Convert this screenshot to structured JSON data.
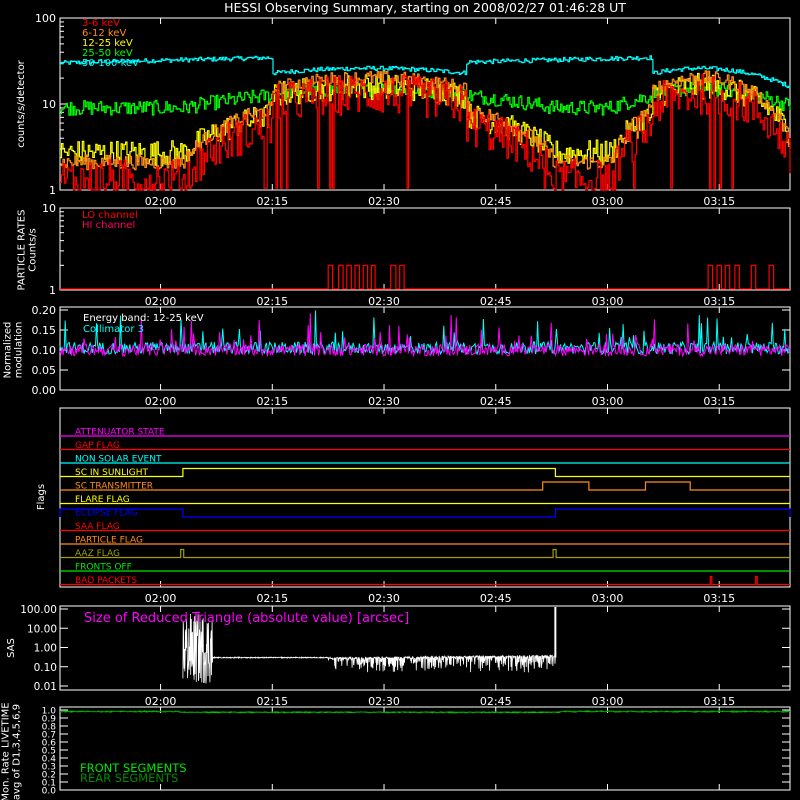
{
  "title": "HESSI Observing Summary, starting on 2008/02/27 01:46:28 UT",
  "time_ticks": [
    "02:00",
    "02:15",
    "02:30",
    "02:45",
    "03:00",
    "03:15"
  ],
  "colors": {
    "background": "#000000",
    "axes": "#ffffff",
    "red": "#ff0000",
    "orange": "#ff8c1a",
    "yellow": "#ffff00",
    "green": "#00ff00",
    "cyan": "#00ffff",
    "magenta": "#ff00ff",
    "crimson": "#ff0060",
    "blue": "#0000ff",
    "olive": "#a0a000",
    "lime": "#00e600",
    "darkgreen": "#008c00"
  },
  "chart_data": [
    {
      "type": "line",
      "panel": "count-rates",
      "ylabel": "counts/s/detector",
      "scale": "log",
      "ylim": [
        1,
        100
      ],
      "ytick_labels": [
        "1",
        "10",
        "100"
      ],
      "xlim_minutes": [
        0,
        98
      ],
      "orbit_day_windows": [
        [
          16.5,
          66.5
        ],
        [
          74.0,
          98.0
        ]
      ],
      "attenuator_high_intervals": [
        [
          0,
          28.5
        ],
        [
          54.5,
          79.5
        ]
      ],
      "legend": [
        "3-6 keV",
        "6-12 keV",
        "12-25 keV",
        "25-50 keV",
        "50-100 keV"
      ],
      "series": [
        {
          "name": "3-6 keV",
          "color": "red",
          "base": 2.2,
          "peak": 13
        },
        {
          "name": "6-12 keV",
          "color": "orange",
          "base": 3.5,
          "peak": 20
        },
        {
          "name": "12-25 keV",
          "color": "yellow",
          "base": 4.5,
          "peak": 16
        },
        {
          "name": "25-50 keV",
          "color": "green",
          "base": 9.5,
          "peak": 15
        },
        {
          "name": "50-100 keV",
          "color": "cyan",
          "base": 30,
          "peak": 26
        }
      ]
    },
    {
      "type": "line",
      "panel": "particle-rates",
      "ylabel_lines": [
        "PARTICLE RATES",
        "Counts/s"
      ],
      "scale": "log",
      "ylim": [
        1,
        10
      ],
      "ytick_labels": [
        "1",
        "10"
      ],
      "legend": [
        "LO channel",
        "HI channel"
      ],
      "series": [
        {
          "name": "LO channel",
          "color": "red"
        },
        {
          "name": "HI channel",
          "color": "crimson"
        }
      ],
      "lo_channel_pulses_minutes": [
        [
          36.0,
          36.6
        ],
        [
          37.4,
          38.0
        ],
        [
          38.5,
          39.1
        ],
        [
          39.6,
          40.2
        ],
        [
          40.7,
          41.3
        ],
        [
          41.8,
          42.3
        ],
        [
          44.4,
          45.1
        ],
        [
          45.6,
          46.2
        ],
        [
          87.0,
          87.6
        ],
        [
          88.2,
          88.8
        ],
        [
          89.3,
          89.9
        ],
        [
          90.6,
          91.2
        ],
        [
          92.8,
          93.4
        ],
        [
          95.2,
          95.8
        ]
      ]
    },
    {
      "type": "line",
      "panel": "modulation",
      "ylabel_lines": [
        "Normalized",
        "modulation"
      ],
      "ylim": [
        0.0,
        0.2
      ],
      "ytick_labels": [
        "0.00",
        "0.05",
        "0.10",
        "0.15",
        "0.20"
      ],
      "legend": [
        "Energy band: 12-25 keV",
        "Collimator 3"
      ],
      "series": [
        {
          "name": "Collimator 3",
          "color": "cyan",
          "mean": 0.105
        },
        {
          "name": "",
          "color": "magenta",
          "mean": 0.1
        }
      ]
    },
    {
      "type": "line",
      "panel": "flags",
      "ylabel": "Flags",
      "flags": [
        {
          "label": "ATTENUATOR STATE",
          "color": "magenta",
          "on": []
        },
        {
          "label": "GAP FLAG",
          "color": "red",
          "on": []
        },
        {
          "label": "NON SOLAR EVENT",
          "color": "cyan",
          "on": []
        },
        {
          "label": "SC IN SUNLIGHT",
          "color": "yellow",
          "on": [
            [
              16.5,
              66.5
            ]
          ]
        },
        {
          "label": "SC TRANSMITTER",
          "color": "orange",
          "on": [
            [
              64.8,
              71.0
            ],
            [
              78.6,
              84.6
            ]
          ]
        },
        {
          "label": "FLARE FLAG",
          "color": "yellow",
          "on": []
        },
        {
          "label": "ECLIPSE FLAG",
          "color": "blue",
          "on": [
            [
              0,
              16.5
            ],
            [
              66.5,
              98
            ]
          ]
        },
        {
          "label": "SAA FLAG",
          "color": "red",
          "on": []
        },
        {
          "label": "PARTICLE FLAG",
          "color": "orange",
          "on": []
        },
        {
          "label": "AAZ FLAG",
          "color": "olive",
          "on": [
            [
              16.2,
              16.6
            ],
            [
              66.2,
              66.6
            ]
          ]
        },
        {
          "label": "FRONTS OFF",
          "color": "lime",
          "on": []
        },
        {
          "label": "BAD PACKETS",
          "color": "red",
          "on": [
            [
              87.3,
              87.5
            ],
            [
              93.4,
              93.6
            ]
          ]
        }
      ]
    },
    {
      "type": "line",
      "panel": "sas",
      "ylabel": "SAS",
      "scale": "log",
      "ylim": [
        0.01,
        100
      ],
      "ytick_labels": [
        "0.01",
        "0.10",
        "1.00",
        "10.00",
        "100.00"
      ],
      "legend": [
        "Size of Reduced Triangle (absolute value) [arcsec]"
      ],
      "series": [
        {
          "name": "Size of Reduced Triangle (absolute value) [arcsec]",
          "color": "white",
          "noisy_interval": [
            16.5,
            20.5
          ],
          "baseline_low": 0.2,
          "baseline_high": 0.33,
          "spike_at": 66.5
        }
      ]
    },
    {
      "type": "line",
      "panel": "livetime",
      "ylabel_lines": [
        "Mon. Rate LIVETIME",
        "avg of D1,3,4,5,6,9"
      ],
      "ylim": [
        0.0,
        1.0
      ],
      "ytick_labels": [
        "0.0",
        "0.1",
        "0.2",
        "0.3",
        "0.4",
        "0.5",
        "0.6",
        "0.7",
        "0.8",
        "0.9",
        "1.0"
      ],
      "legend": [
        "FRONT SEGMENTS",
        "REAR SEGMENTS"
      ],
      "series": [
        {
          "name": "FRONT SEGMENTS",
          "color": "lime",
          "mean": 0.98
        },
        {
          "name": "REAR SEGMENTS",
          "color": "darkgreen",
          "mean": 0.985
        }
      ]
    }
  ]
}
